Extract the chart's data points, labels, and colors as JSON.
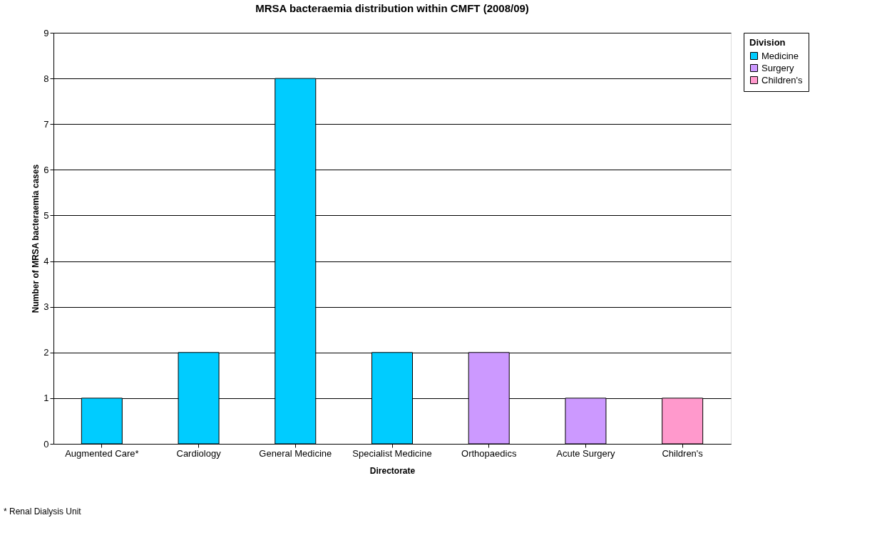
{
  "chart_data": {
    "type": "bar",
    "title": "MRSA bacteraemia distribution within CMFT (2008/09)",
    "xlabel": "Directorate",
    "ylabel": "Number of MRSA bacteraemia cases",
    "legend_title": "Division",
    "categories": [
      "Augmented Care*",
      "Cardiology",
      "General Medicine",
      "Specialist Medicine",
      "Orthopaedics",
      "Acute Surgery",
      "Children's"
    ],
    "series": [
      {
        "name": "Medicine",
        "color": "#00ccff",
        "values": [
          1,
          2,
          8,
          2,
          null,
          null,
          null
        ]
      },
      {
        "name": "Surgery",
        "color": "#cc99ff",
        "values": [
          null,
          null,
          null,
          null,
          2,
          1,
          null
        ]
      },
      {
        "name": "Children's",
        "color": "#ff99cc",
        "values": [
          null,
          null,
          null,
          null,
          null,
          null,
          1
        ]
      }
    ],
    "ylim": [
      0,
      9
    ],
    "yticks": [
      0,
      1,
      2,
      3,
      4,
      5,
      6,
      7,
      8,
      9
    ],
    "grid": "y",
    "legend": "right",
    "annotations": [
      "* Renal Dialysis Unit"
    ]
  }
}
